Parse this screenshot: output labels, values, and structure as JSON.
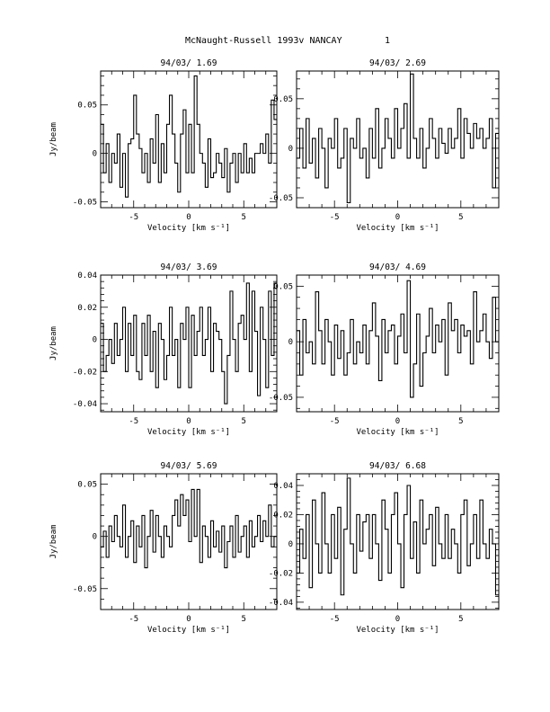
{
  "header": {
    "title": "McNaught-Russell 1993v   NANCAY",
    "page_number": "1"
  },
  "chart_data": [
    {
      "type": "line",
      "title": "94/03/ 1.69",
      "xlabel": "Velocity [km s⁻¹]",
      "ylabel": "Jy/beam",
      "xlim": [
        -8,
        8
      ],
      "ylim": [
        -0.056,
        0.085
      ],
      "xticks": [
        -5,
        0,
        5
      ],
      "xtick_labels": [
        "-5",
        "0",
        "5"
      ],
      "yticks": [
        -0.05,
        0,
        0.05
      ],
      "ytick_labels": [
        "-0.05",
        "0",
        "0.05"
      ],
      "grid": false,
      "x": [
        -8.0,
        -7.75,
        -7.5,
        -7.25,
        -7.0,
        -6.75,
        -6.5,
        -6.25,
        -6.0,
        -5.75,
        -5.5,
        -5.25,
        -5.0,
        -4.75,
        -4.5,
        -4.25,
        -4.0,
        -3.75,
        -3.5,
        -3.25,
        -3.0,
        -2.75,
        -2.5,
        -2.25,
        -2.0,
        -1.75,
        -1.5,
        -1.25,
        -1.0,
        -0.75,
        -0.5,
        -0.25,
        0.0,
        0.25,
        0.5,
        0.75,
        1.0,
        1.25,
        1.5,
        1.75,
        2.0,
        2.25,
        2.5,
        2.75,
        3.0,
        3.25,
        3.5,
        3.75,
        4.0,
        4.25,
        4.5,
        4.75,
        5.0,
        5.25,
        5.5,
        5.75,
        6.0,
        6.25,
        6.5,
        6.75,
        7.0,
        7.25,
        7.5,
        7.75
      ],
      "y": [
        0.03,
        -0.02,
        0.01,
        -0.03,
        0.0,
        -0.01,
        0.02,
        -0.035,
        0.0,
        -0.045,
        0.01,
        0.015,
        0.06,
        0.02,
        0.005,
        -0.02,
        0.0,
        -0.03,
        0.015,
        -0.01,
        0.04,
        -0.03,
        0.01,
        -0.02,
        0.03,
        0.06,
        0.02,
        -0.01,
        -0.04,
        0.02,
        0.045,
        -0.02,
        0.03,
        -0.02,
        0.08,
        0.03,
        0.0,
        -0.01,
        -0.035,
        0.015,
        -0.025,
        -0.02,
        0.0,
        -0.01,
        -0.025,
        0.005,
        -0.04,
        -0.01,
        0.0,
        -0.03,
        0.0,
        -0.02,
        0.01,
        -0.02,
        -0.005,
        -0.02,
        0.0,
        0.0,
        0.01,
        0.0,
        0.02,
        -0.01,
        0.055,
        0.035
      ]
    },
    {
      "type": "line",
      "title": "94/03/ 2.69",
      "xlabel": "Velocity [km s⁻¹]",
      "ylabel": "",
      "xlim": [
        -8,
        8
      ],
      "ylim": [
        -0.06,
        0.078
      ],
      "xticks": [
        -5,
        0,
        5
      ],
      "xtick_labels": [
        "-5",
        "0",
        "5"
      ],
      "yticks": [
        -0.05,
        0,
        0.05
      ],
      "ytick_labels": [
        "-0.05",
        "0",
        "0.05"
      ],
      "grid": false,
      "x": [
        -8.0,
        -7.75,
        -7.5,
        -7.25,
        -7.0,
        -6.75,
        -6.5,
        -6.25,
        -6.0,
        -5.75,
        -5.5,
        -5.25,
        -5.0,
        -4.75,
        -4.5,
        -4.25,
        -4.0,
        -3.75,
        -3.5,
        -3.25,
        -3.0,
        -2.75,
        -2.5,
        -2.25,
        -2.0,
        -1.75,
        -1.5,
        -1.25,
        -1.0,
        -0.75,
        -0.5,
        -0.25,
        0.0,
        0.25,
        0.5,
        0.75,
        1.0,
        1.25,
        1.5,
        1.75,
        2.0,
        2.25,
        2.5,
        2.75,
        3.0,
        3.25,
        3.5,
        3.75,
        4.0,
        4.25,
        4.5,
        4.75,
        5.0,
        5.25,
        5.5,
        5.75,
        6.0,
        6.25,
        6.5,
        6.75,
        7.0,
        7.25,
        7.5,
        7.75
      ],
      "y": [
        -0.01,
        0.02,
        -0.02,
        0.03,
        -0.015,
        0.01,
        -0.03,
        0.02,
        0.0,
        -0.04,
        0.01,
        0.0,
        0.03,
        -0.02,
        -0.01,
        0.02,
        -0.055,
        0.01,
        0.0,
        0.03,
        -0.01,
        0.0,
        -0.03,
        0.02,
        -0.01,
        0.04,
        -0.02,
        0.0,
        0.03,
        0.01,
        -0.01,
        0.04,
        0.0,
        0.02,
        0.045,
        -0.01,
        0.075,
        0.01,
        -0.01,
        0.02,
        -0.02,
        0.0,
        0.03,
        0.01,
        -0.01,
        0.02,
        0.005,
        -0.005,
        0.02,
        0.0,
        0.01,
        0.04,
        -0.01,
        0.03,
        0.015,
        0.0,
        0.025,
        0.01,
        0.02,
        0.0,
        0.01,
        0.03,
        -0.04,
        0.015
      ]
    },
    {
      "type": "line",
      "title": "94/03/ 3.69",
      "xlabel": "Velocity [km s⁻¹]",
      "ylabel": "Jy/beam",
      "xlim": [
        -8,
        8
      ],
      "ylim": [
        -0.045,
        0.04
      ],
      "xticks": [
        -5,
        0,
        5
      ],
      "xtick_labels": [
        "-5",
        "0",
        "5"
      ],
      "yticks": [
        -0.04,
        -0.02,
        0,
        0.02,
        0.04
      ],
      "ytick_labels": [
        "-0.04",
        "-0.02",
        "0",
        "0.02",
        "0.04"
      ],
      "grid": false,
      "x": [
        -8.0,
        -7.75,
        -7.5,
        -7.25,
        -7.0,
        -6.75,
        -6.5,
        -6.25,
        -6.0,
        -5.75,
        -5.5,
        -5.25,
        -5.0,
        -4.75,
        -4.5,
        -4.25,
        -4.0,
        -3.75,
        -3.5,
        -3.25,
        -3.0,
        -2.75,
        -2.5,
        -2.25,
        -2.0,
        -1.75,
        -1.5,
        -1.25,
        -1.0,
        -0.75,
        -0.5,
        -0.25,
        0.0,
        0.25,
        0.5,
        0.75,
        1.0,
        1.25,
        1.5,
        1.75,
        2.0,
        2.25,
        2.5,
        2.75,
        3.0,
        3.25,
        3.5,
        3.75,
        4.0,
        4.25,
        4.5,
        4.75,
        5.0,
        5.25,
        5.5,
        5.75,
        6.0,
        6.25,
        6.5,
        6.75,
        7.0,
        7.25,
        7.5,
        7.75
      ],
      "y": [
        0.01,
        -0.02,
        -0.01,
        0.0,
        -0.015,
        0.01,
        -0.01,
        0.0,
        0.02,
        -0.02,
        0.01,
        -0.01,
        0.015,
        -0.02,
        -0.025,
        0.01,
        -0.01,
        0.015,
        -0.02,
        0.005,
        -0.03,
        0.01,
        0.0,
        -0.025,
        -0.01,
        0.02,
        -0.01,
        0.0,
        -0.03,
        0.01,
        0.0,
        0.02,
        -0.03,
        0.015,
        -0.01,
        0.005,
        0.02,
        -0.01,
        0.0,
        0.02,
        -0.02,
        0.01,
        0.005,
        0.0,
        -0.02,
        -0.04,
        -0.01,
        0.03,
        0.0,
        -0.02,
        0.01,
        0.015,
        0.0,
        0.035,
        -0.02,
        0.03,
        0.005,
        -0.035,
        0.02,
        0.0,
        -0.03,
        0.03,
        -0.01,
        0.035
      ]
    },
    {
      "type": "line",
      "title": "94/03/ 4.69",
      "xlabel": "Velocity [km s⁻¹]",
      "ylabel": "",
      "xlim": [
        -8,
        8
      ],
      "ylim": [
        -0.063,
        0.06
      ],
      "xticks": [
        -5,
        0,
        5
      ],
      "xtick_labels": [
        "-5",
        "0",
        "5"
      ],
      "yticks": [
        -0.05,
        0,
        0.05
      ],
      "ytick_labels": [
        "-0.05",
        "0",
        "0.05"
      ],
      "grid": false,
      "x": [
        -8.0,
        -7.75,
        -7.5,
        -7.25,
        -7.0,
        -6.75,
        -6.5,
        -6.25,
        -6.0,
        -5.75,
        -5.5,
        -5.25,
        -5.0,
        -4.75,
        -4.5,
        -4.25,
        -4.0,
        -3.75,
        -3.5,
        -3.25,
        -3.0,
        -2.75,
        -2.5,
        -2.25,
        -2.0,
        -1.75,
        -1.5,
        -1.25,
        -1.0,
        -0.75,
        -0.5,
        -0.25,
        0.0,
        0.25,
        0.5,
        0.75,
        1.0,
        1.25,
        1.5,
        1.75,
        2.0,
        2.25,
        2.5,
        2.75,
        3.0,
        3.25,
        3.5,
        3.75,
        4.0,
        4.25,
        4.5,
        4.75,
        5.0,
        5.25,
        5.5,
        5.75,
        6.0,
        6.25,
        6.5,
        6.75,
        7.0,
        7.25,
        7.5,
        7.75
      ],
      "y": [
        0.01,
        -0.03,
        0.02,
        -0.01,
        0.0,
        -0.02,
        0.045,
        0.01,
        -0.02,
        0.02,
        0.0,
        -0.03,
        0.015,
        -0.015,
        0.01,
        -0.03,
        -0.01,
        0.02,
        -0.02,
        0.0,
        -0.01,
        0.015,
        -0.02,
        0.01,
        0.035,
        0.005,
        -0.035,
        0.02,
        -0.01,
        0.01,
        0.015,
        -0.02,
        0.005,
        0.025,
        -0.01,
        0.055,
        -0.05,
        -0.02,
        0.025,
        -0.04,
        -0.01,
        0.005,
        0.03,
        -0.01,
        0.015,
        0.0,
        0.02,
        -0.03,
        0.035,
        0.01,
        0.02,
        -0.01,
        0.015,
        0.005,
        0.01,
        -0.02,
        0.045,
        0.0,
        0.01,
        0.025,
        0.0,
        -0.015,
        0.04,
        0.0
      ]
    },
    {
      "type": "line",
      "title": "94/03/ 5.69",
      "xlabel": "Velocity [km s⁻¹]",
      "ylabel": "Jy/beam",
      "xlim": [
        -8,
        8
      ],
      "ylim": [
        -0.07,
        0.06
      ],
      "xticks": [
        -5,
        0,
        5
      ],
      "xtick_labels": [
        "-5",
        "0",
        "5"
      ],
      "yticks": [
        -0.05,
        0,
        0.05
      ],
      "ytick_labels": [
        "-0.05",
        "0",
        "0.05"
      ],
      "grid": false,
      "x": [
        -8.0,
        -7.75,
        -7.5,
        -7.25,
        -7.0,
        -6.75,
        -6.5,
        -6.25,
        -6.0,
        -5.75,
        -5.5,
        -5.25,
        -5.0,
        -4.75,
        -4.5,
        -4.25,
        -4.0,
        -3.75,
        -3.5,
        -3.25,
        -3.0,
        -2.75,
        -2.5,
        -2.25,
        -2.0,
        -1.75,
        -1.5,
        -1.25,
        -1.0,
        -0.75,
        -0.5,
        -0.25,
        0.0,
        0.25,
        0.5,
        0.75,
        1.0,
        1.25,
        1.5,
        1.75,
        2.0,
        2.25,
        2.5,
        2.75,
        3.0,
        3.25,
        3.5,
        3.75,
        4.0,
        4.25,
        4.5,
        4.75,
        5.0,
        5.25,
        5.5,
        5.75,
        6.0,
        6.25,
        6.5,
        6.75,
        7.0,
        7.25,
        7.5,
        7.75
      ],
      "y": [
        -0.01,
        0.005,
        -0.02,
        0.01,
        -0.005,
        0.02,
        0.0,
        -0.01,
        0.03,
        -0.02,
        0.0,
        0.015,
        -0.025,
        0.01,
        -0.01,
        0.02,
        -0.03,
        0.0,
        0.025,
        -0.015,
        0.02,
        0.0,
        -0.02,
        0.01,
        0.0,
        -0.01,
        0.02,
        0.035,
        0.01,
        0.04,
        0.02,
        0.035,
        -0.005,
        0.045,
        0.0,
        0.045,
        -0.025,
        0.01,
        0.0,
        -0.02,
        0.015,
        -0.01,
        0.005,
        -0.015,
        0.01,
        -0.03,
        -0.005,
        0.01,
        -0.02,
        0.02,
        -0.015,
        0.0,
        0.01,
        -0.02,
        0.015,
        -0.01,
        0.0,
        0.02,
        -0.005,
        0.015,
        0.0,
        0.03,
        -0.01,
        0.0
      ]
    },
    {
      "type": "line",
      "title": "94/03/ 6.68",
      "xlabel": "Velocity [km s⁻¹]",
      "ylabel": "",
      "xlim": [
        -8,
        8
      ],
      "ylim": [
        -0.045,
        0.048
      ],
      "xticks": [
        -5,
        0,
        5
      ],
      "xtick_labels": [
        "-5",
        "0",
        "5"
      ],
      "yticks": [
        -0.04,
        -0.02,
        0,
        0.02,
        0.04
      ],
      "ytick_labels": [
        "-0.04",
        "-0.02",
        "0",
        "0.02",
        "0.04"
      ],
      "grid": false,
      "x": [
        -8.0,
        -7.75,
        -7.5,
        -7.25,
        -7.0,
        -6.75,
        -6.5,
        -6.25,
        -6.0,
        -5.75,
        -5.5,
        -5.25,
        -5.0,
        -4.75,
        -4.5,
        -4.25,
        -4.0,
        -3.75,
        -3.5,
        -3.25,
        -3.0,
        -2.75,
        -2.5,
        -2.25,
        -2.0,
        -1.75,
        -1.5,
        -1.25,
        -1.0,
        -0.75,
        -0.5,
        -0.25,
        0.0,
        0.25,
        0.5,
        0.75,
        1.0,
        1.25,
        1.5,
        1.75,
        2.0,
        2.25,
        2.5,
        2.75,
        3.0,
        3.25,
        3.5,
        3.75,
        4.0,
        4.25,
        4.5,
        4.75,
        5.0,
        5.25,
        5.5,
        5.75,
        6.0,
        6.25,
        6.5,
        6.75,
        7.0,
        7.25,
        7.5,
        7.75
      ],
      "y": [
        -0.02,
        0.01,
        -0.01,
        0.02,
        -0.03,
        0.03,
        0.0,
        -0.02,
        0.035,
        0.0,
        -0.02,
        0.02,
        -0.01,
        0.025,
        -0.035,
        0.01,
        0.045,
        0.0,
        -0.02,
        0.02,
        -0.005,
        0.015,
        0.02,
        -0.01,
        0.02,
        0.0,
        -0.025,
        0.03,
        0.01,
        -0.02,
        0.02,
        0.035,
        0.0,
        -0.03,
        0.02,
        0.04,
        -0.01,
        0.015,
        -0.02,
        0.03,
        0.0,
        0.01,
        0.02,
        -0.015,
        0.025,
        0.0,
        -0.01,
        0.02,
        -0.01,
        0.01,
        0.0,
        -0.02,
        0.02,
        0.03,
        -0.015,
        0.0,
        0.02,
        -0.01,
        0.03,
        0.0,
        -0.01,
        0.01,
        0.0,
        -0.035
      ]
    }
  ]
}
